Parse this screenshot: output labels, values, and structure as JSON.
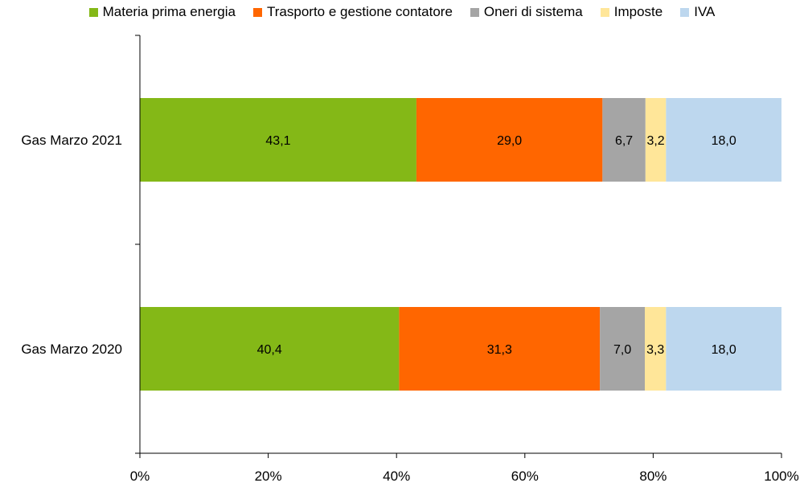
{
  "chart_data": {
    "type": "bar",
    "orientation": "horizontal",
    "stacked": true,
    "percent_stacked": true,
    "categories": [
      "Gas Marzo 2021",
      "Gas Marzo 2020"
    ],
    "series": [
      {
        "name": "Materia prima energia",
        "color": "#84b817",
        "values": [
          43.1,
          40.4
        ],
        "labels": [
          "43,1",
          "40,4"
        ]
      },
      {
        "name": "Trasporto e gestione contatore",
        "color": "#ff6600",
        "values": [
          29.0,
          31.3
        ],
        "labels": [
          "29,0",
          "31,3"
        ]
      },
      {
        "name": "Oneri di sistema",
        "color": "#a5a5a5",
        "values": [
          6.7,
          7.0
        ],
        "labels": [
          "6,7",
          "7,0"
        ]
      },
      {
        "name": "Imposte",
        "color": "#ffe699",
        "values": [
          3.2,
          3.3
        ],
        "labels": [
          "3,2",
          "3,3"
        ]
      },
      {
        "name": "IVA",
        "color": "#bdd7ee",
        "values": [
          18.0,
          18.0
        ],
        "labels": [
          "18,0",
          "18,0"
        ]
      }
    ],
    "xlim": [
      0,
      100
    ],
    "xticks": [
      0,
      20,
      40,
      60,
      80,
      100
    ],
    "xtick_labels": [
      "0%",
      "20%",
      "40%",
      "60%",
      "80%",
      "100%"
    ],
    "title": "",
    "xlabel": "",
    "ylabel": "",
    "legend": "top",
    "grid": false
  }
}
